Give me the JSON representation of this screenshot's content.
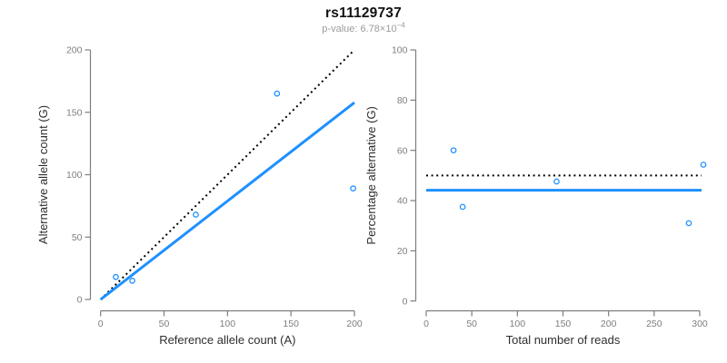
{
  "header": {
    "title": "rs11129737",
    "pvalue_prefix": "p-value: 6.78×10",
    "pvalue_exponent": "−4"
  },
  "colors": {
    "accent_blue": "#1E90FF",
    "dotted_black": "#000000",
    "axis_gray": "#7e7e7e",
    "tick_label_gray": "#7e7e7e",
    "axis_title_dark": "#2e2e2e"
  },
  "chart_data": [
    {
      "type": "scatter",
      "name": "allele-counts-plot",
      "xlabel": "Reference allele count (A)",
      "ylabel": "Alternative allele count (G)",
      "xlim": [
        0,
        200
      ],
      "ylim": [
        0,
        200
      ],
      "xticks": [
        0,
        50,
        100,
        150,
        200
      ],
      "yticks": [
        0,
        50,
        100,
        150,
        200
      ],
      "grid": false,
      "points": [
        [
          12,
          18
        ],
        [
          25,
          15
        ],
        [
          75,
          68
        ],
        [
          139,
          165
        ],
        [
          199,
          89
        ]
      ],
      "lines": [
        {
          "name": "identity-line",
          "style": "dotted",
          "color": "#000000",
          "points": [
            [
              0,
              0
            ],
            [
              200,
              200
            ]
          ]
        },
        {
          "name": "regression-line",
          "style": "solid",
          "color": "#1E90FF",
          "points": [
            [
              0,
              0
            ],
            [
              200,
              157.8
            ]
          ]
        }
      ]
    },
    {
      "type": "scatter",
      "name": "percentage-alternative-plot",
      "xlabel": "Total number of reads",
      "ylabel": "Percentage alternative (G)",
      "xlim": [
        0,
        300
      ],
      "ylim": [
        0,
        100
      ],
      "xticks": [
        0,
        50,
        100,
        150,
        200,
        250,
        300
      ],
      "yticks": [
        0,
        20,
        40,
        60,
        80,
        100
      ],
      "grid": false,
      "points": [
        [
          30,
          60
        ],
        [
          40,
          37.5
        ],
        [
          143,
          47.6
        ],
        [
          304,
          54.3
        ],
        [
          288,
          31
        ]
      ],
      "lines": [
        {
          "name": "expected-50-percent-line",
          "style": "dotted",
          "color": "#000000",
          "points": [
            [
              0,
              50
            ],
            [
              302,
              50
            ]
          ]
        },
        {
          "name": "overall-percentage-line",
          "style": "solid",
          "color": "#1E90FF",
          "points": [
            [
              0,
              44.1
            ],
            [
              302,
              44.1
            ]
          ]
        }
      ]
    }
  ]
}
